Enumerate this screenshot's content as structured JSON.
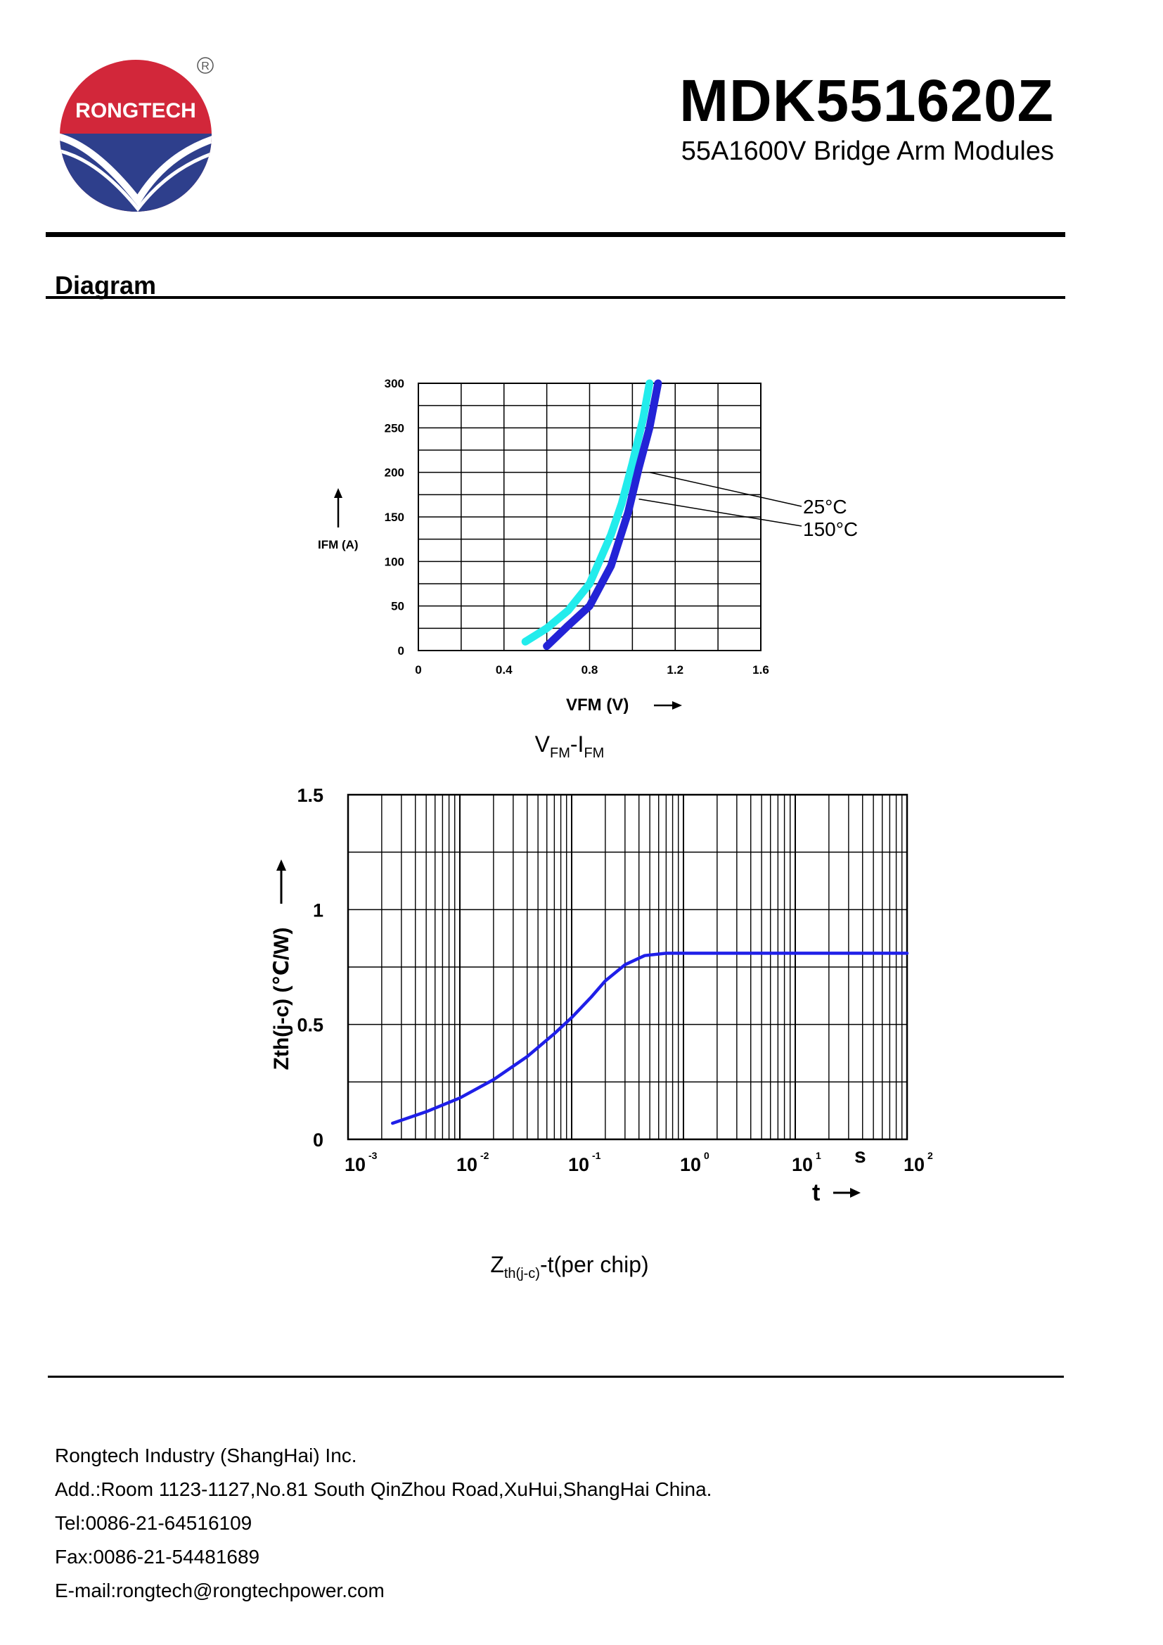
{
  "header": {
    "logo_text": "RONGTECH",
    "registered_mark": "R",
    "part_number": "MDK551620Z",
    "subtitle": "55A1600V Bridge Arm Modules"
  },
  "section": {
    "title": "Diagram"
  },
  "colors": {
    "curve_25c": "#22ecec",
    "curve_150c": "#2323d6",
    "zth_curve": "#1f1fe8",
    "logo_red": "#d2273a",
    "logo_blue": "#2e3f8c"
  },
  "chart_data": [
    {
      "type": "line",
      "title": "VFM-IFM",
      "title_parts": {
        "v": "V",
        "v_sub": "FM",
        "dash": "-I",
        "i_sub": "FM"
      },
      "xlabel": "VFM (V)",
      "ylabel": "IFM (A)",
      "xlim": [
        0,
        1.6
      ],
      "ylim": [
        0,
        300
      ],
      "x_ticks": [
        "0",
        "0.4",
        "0.8",
        "1.2",
        "1.6"
      ],
      "y_ticks": [
        "0",
        "50",
        "100",
        "150",
        "200",
        "250",
        "300"
      ],
      "grid": true,
      "annotations": [
        "25°C",
        "150°C"
      ],
      "series": [
        {
          "name": "25°C",
          "x": [
            0.5,
            0.6,
            0.7,
            0.8,
            0.9,
            0.95,
            1.0,
            1.05,
            1.08
          ],
          "y": [
            10,
            25,
            45,
            75,
            130,
            165,
            210,
            260,
            300
          ]
        },
        {
          "name": "150°C",
          "x": [
            0.6,
            0.7,
            0.8,
            0.9,
            0.98,
            1.03,
            1.08,
            1.12
          ],
          "y": [
            5,
            28,
            50,
            95,
            155,
            205,
            250,
            300
          ]
        }
      ]
    },
    {
      "type": "line",
      "title": "Zth(j-c)-t(per chip)",
      "title_parts": {
        "z": "Z",
        "sub": "th(j-c)",
        "rest": "-t(per chip)"
      },
      "xlabel": "t",
      "x_unit": "s",
      "ylabel": "Zth(j-c) (℃/W)",
      "x_scale": "log",
      "xlim": [
        0.001,
        100
      ],
      "ylim": [
        0,
        1.5
      ],
      "x_ticks": [
        "10-3",
        "10-2",
        "10-1",
        "100",
        "101",
        "102"
      ],
      "x_tick_exponents": [
        "-3",
        "-2",
        "-1",
        "0",
        "1",
        "2"
      ],
      "y_ticks": [
        "0",
        "0.5",
        "1",
        "1.5"
      ],
      "grid": true,
      "series": [
        {
          "name": "Zth(j-c)",
          "x": [
            0.0025,
            0.005,
            0.01,
            0.02,
            0.04,
            0.07,
            0.1,
            0.15,
            0.2,
            0.3,
            0.45,
            0.7,
            1,
            10,
            100
          ],
          "y": [
            0.07,
            0.12,
            0.18,
            0.26,
            0.36,
            0.46,
            0.53,
            0.62,
            0.69,
            0.76,
            0.8,
            0.81,
            0.81,
            0.81,
            0.81
          ]
        }
      ]
    }
  ],
  "footer": {
    "company": "Rongtech Industry (ShangHai) Inc.",
    "address": "Add.:Room 1123-1127,No.81 South QinZhou Road,XuHui,ShangHai China.",
    "tel": "Tel:0086-21-64516109",
    "fax": "Fax:0086-21-54481689",
    "email": "E-mail:rongtech@rongtechpower.com"
  }
}
